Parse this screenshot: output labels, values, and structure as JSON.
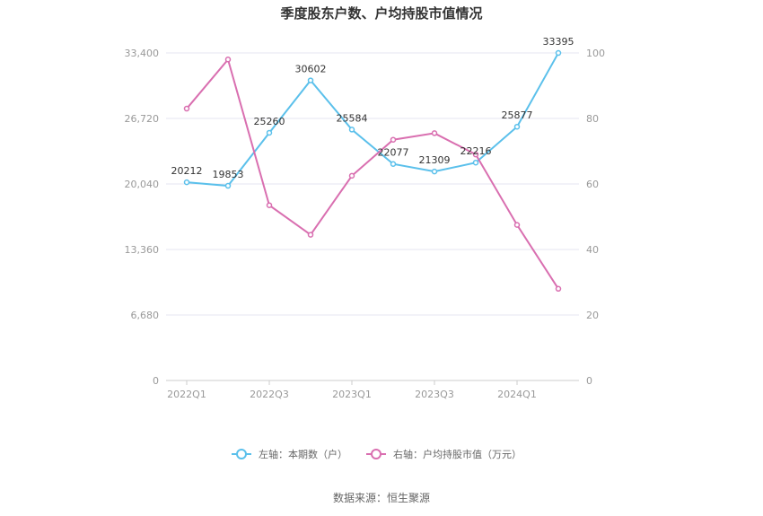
{
  "chart_data": {
    "type": "line",
    "title": "季度股东户数、户均持股市值情况",
    "categories": [
      "2022Q1",
      "2022Q2",
      "2022Q3",
      "2022Q4",
      "2023Q1",
      "2023Q2",
      "2023Q3",
      "2023Q4",
      "2024Q1",
      "2024Q2"
    ],
    "x_tick_labels": [
      "2022Q1",
      "2022Q3",
      "2023Q1",
      "2023Q3",
      "2024Q1"
    ],
    "left_axis": {
      "ylim": [
        0,
        33400
      ],
      "ticks": [
        "0",
        "6,680",
        "13,360",
        "20,040",
        "26,720",
        "33,400"
      ]
    },
    "right_axis": {
      "ylim": [
        0,
        100
      ],
      "ticks": [
        "0",
        "20",
        "40",
        "60",
        "80",
        "100"
      ]
    },
    "series": [
      {
        "name": "左轴：本期数（户）",
        "axis": "left",
        "color": "#5bc0eb",
        "values": [
          20212,
          19853,
          25260,
          30602,
          25584,
          22077,
          21309,
          22216,
          25877,
          33395
        ],
        "labels": [
          "20212",
          "19853",
          "25260",
          "30602",
          "25584",
          "22077",
          "21309",
          "22216",
          "25877",
          "33395"
        ]
      },
      {
        "name": "右轴：户均持股市值（万元）",
        "axis": "right",
        "color": "#d96fb0",
        "values": [
          83,
          98,
          53.5,
          44.5,
          62.5,
          73.5,
          75.5,
          69,
          47.5,
          28
        ]
      }
    ],
    "grid": true,
    "legend_position": "bottom"
  },
  "source_text": "数据来源：恒生聚源"
}
